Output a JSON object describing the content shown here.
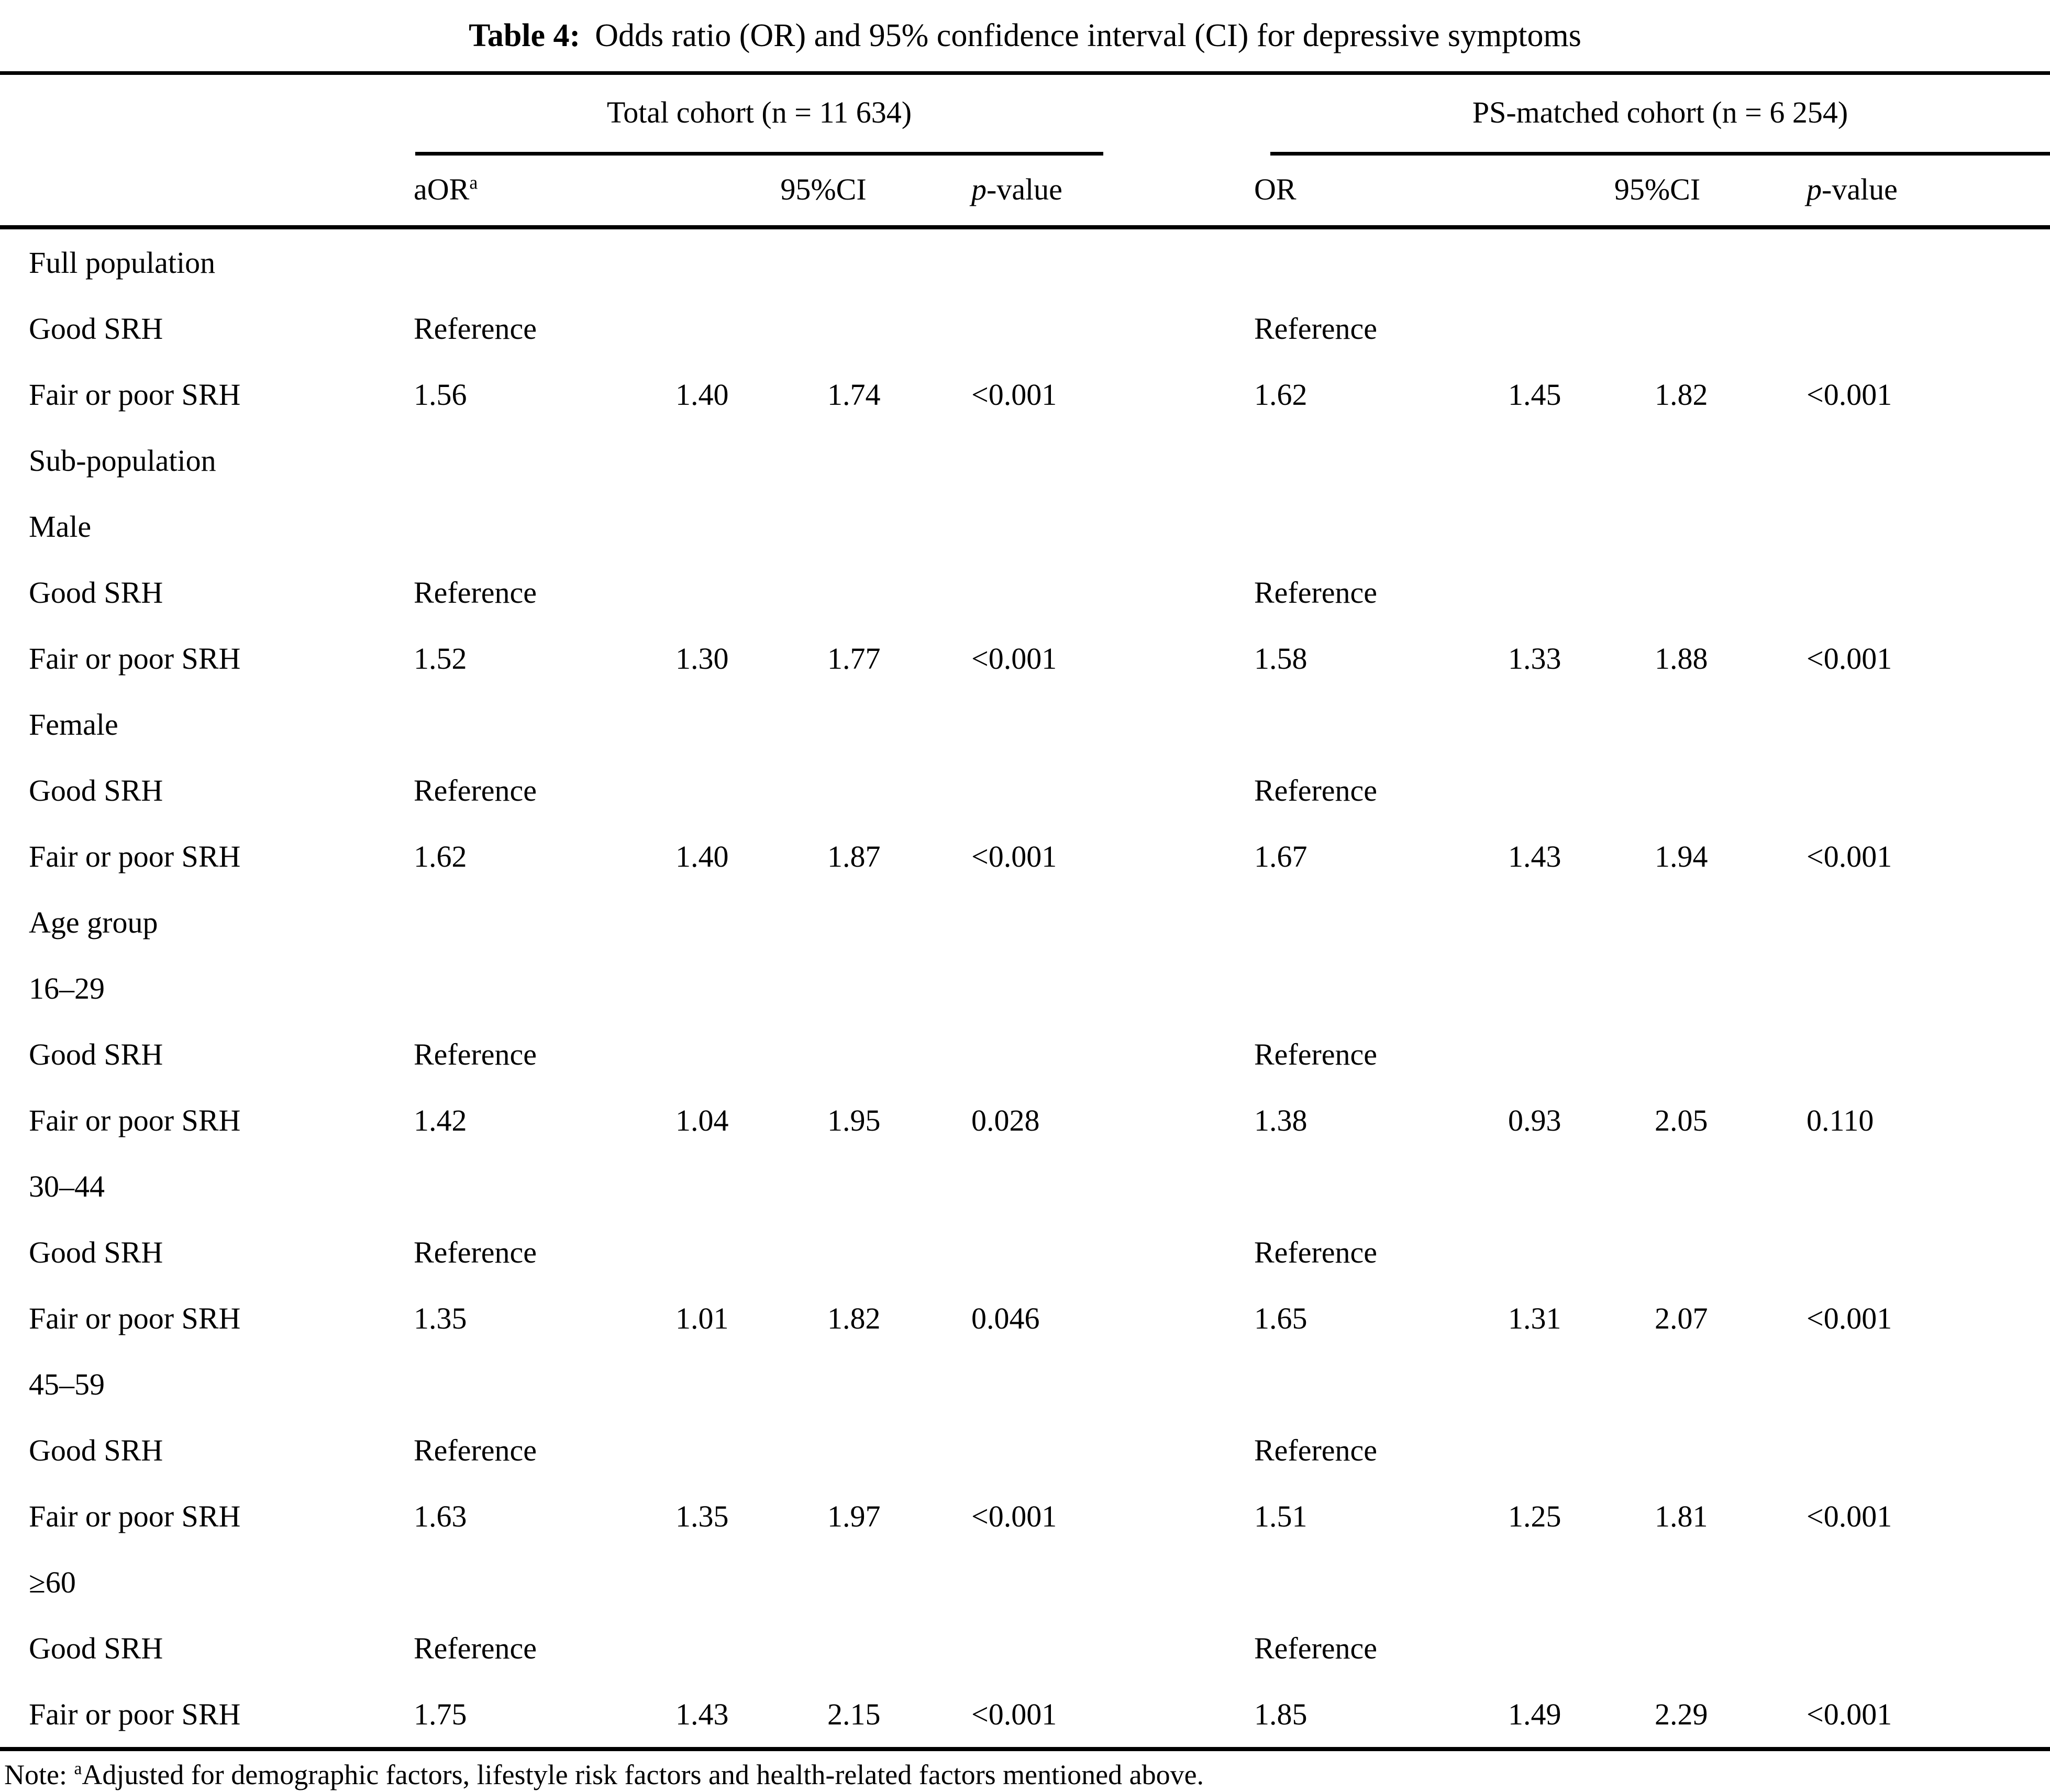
{
  "title": {
    "label": "Table 4:",
    "text": "Odds ratio (OR) and 95% confidence interval (CI) for depressive symptoms"
  },
  "header": {
    "group1": "Total cohort (n = 11 634)",
    "group2": "PS-matched cohort (n = 6 254)",
    "col_aor_base": "aOR",
    "col_aor_sup": "a",
    "col_ci_1": "95%CI",
    "col_ci_2": "95%CI",
    "col_p_italic": "p",
    "col_p_rest": "-value",
    "col_or": "OR"
  },
  "rows": [
    {
      "label": "Full population",
      "aor": "",
      "ci1": "",
      "ci2": "",
      "p": "",
      "or": "",
      "ci1b": "",
      "ci2b": "",
      "pb": ""
    },
    {
      "label": "Good SRH",
      "aor": "Reference",
      "ci1": "",
      "ci2": "",
      "p": "",
      "or": "Reference",
      "ci1b": "",
      "ci2b": "",
      "pb": ""
    },
    {
      "label": "Fair or poor SRH",
      "aor": "1.56",
      "ci1": "1.40",
      "ci2": "1.74",
      "p": "<0.001",
      "or": "1.62",
      "ci1b": "1.45",
      "ci2b": "1.82",
      "pb": "<0.001"
    },
    {
      "label": "Sub-population",
      "aor": "",
      "ci1": "",
      "ci2": "",
      "p": "",
      "or": "",
      "ci1b": "",
      "ci2b": "",
      "pb": ""
    },
    {
      "label": "Male",
      "aor": "",
      "ci1": "",
      "ci2": "",
      "p": "",
      "or": "",
      "ci1b": "",
      "ci2b": "",
      "pb": ""
    },
    {
      "label": "Good SRH",
      "aor": "Reference",
      "ci1": "",
      "ci2": "",
      "p": "",
      "or": "Reference",
      "ci1b": "",
      "ci2b": "",
      "pb": ""
    },
    {
      "label": "Fair or poor SRH",
      "aor": "1.52",
      "ci1": "1.30",
      "ci2": "1.77",
      "p": "<0.001",
      "or": "1.58",
      "ci1b": "1.33",
      "ci2b": "1.88",
      "pb": "<0.001"
    },
    {
      "label": "Female",
      "aor": "",
      "ci1": "",
      "ci2": "",
      "p": "",
      "or": "",
      "ci1b": "",
      "ci2b": "",
      "pb": ""
    },
    {
      "label": "Good SRH",
      "aor": "Reference",
      "ci1": "",
      "ci2": "",
      "p": "",
      "or": "Reference",
      "ci1b": "",
      "ci2b": "",
      "pb": ""
    },
    {
      "label": "Fair or poor SRH",
      "aor": "1.62",
      "ci1": "1.40",
      "ci2": "1.87",
      "p": "<0.001",
      "or": "1.67",
      "ci1b": "1.43",
      "ci2b": "1.94",
      "pb": "<0.001"
    },
    {
      "label": "Age group",
      "aor": "",
      "ci1": "",
      "ci2": "",
      "p": "",
      "or": "",
      "ci1b": "",
      "ci2b": "",
      "pb": ""
    },
    {
      "label": "16–29",
      "aor": "",
      "ci1": "",
      "ci2": "",
      "p": "",
      "or": "",
      "ci1b": "",
      "ci2b": "",
      "pb": ""
    },
    {
      "label": "Good SRH",
      "aor": "Reference",
      "ci1": "",
      "ci2": "",
      "p": "",
      "or": "Reference",
      "ci1b": "",
      "ci2b": "",
      "pb": ""
    },
    {
      "label": "Fair or poor SRH",
      "aor": "1.42",
      "ci1": "1.04",
      "ci2": "1.95",
      "p": "0.028",
      "or": "1.38",
      "ci1b": "0.93",
      "ci2b": "2.05",
      "pb": "0.110"
    },
    {
      "label": "30–44",
      "aor": "",
      "ci1": "",
      "ci2": "",
      "p": "",
      "or": "",
      "ci1b": "",
      "ci2b": "",
      "pb": ""
    },
    {
      "label": "Good SRH",
      "aor": "Reference",
      "ci1": "",
      "ci2": "",
      "p": "",
      "or": "Reference",
      "ci1b": "",
      "ci2b": "",
      "pb": ""
    },
    {
      "label": "Fair or poor SRH",
      "aor": "1.35",
      "ci1": "1.01",
      "ci2": "1.82",
      "p": "0.046",
      "or": "1.65",
      "ci1b": "1.31",
      "ci2b": "2.07",
      "pb": "<0.001"
    },
    {
      "label": "45–59",
      "aor": "",
      "ci1": "",
      "ci2": "",
      "p": "",
      "or": "",
      "ci1b": "",
      "ci2b": "",
      "pb": ""
    },
    {
      "label": "Good SRH",
      "aor": "Reference",
      "ci1": "",
      "ci2": "",
      "p": "",
      "or": "Reference",
      "ci1b": "",
      "ci2b": "",
      "pb": ""
    },
    {
      "label": "Fair or poor SRH",
      "aor": "1.63",
      "ci1": "1.35",
      "ci2": "1.97",
      "p": "<0.001",
      "or": "1.51",
      "ci1b": "1.25",
      "ci2b": "1.81",
      "pb": "<0.001"
    },
    {
      "label": "≥60",
      "aor": "",
      "ci1": "",
      "ci2": "",
      "p": "",
      "or": "",
      "ci1b": "",
      "ci2b": "",
      "pb": ""
    },
    {
      "label": "Good SRH",
      "aor": "Reference",
      "ci1": "",
      "ci2": "",
      "p": "",
      "or": "Reference",
      "ci1b": "",
      "ci2b": "",
      "pb": ""
    },
    {
      "label": "Fair or poor SRH",
      "aor": "1.75",
      "ci1": "1.43",
      "ci2": "2.15",
      "p": "<0.001",
      "or": "1.85",
      "ci1b": "1.49",
      "ci2b": "2.29",
      "pb": "<0.001"
    }
  ],
  "note": {
    "prefix": "Note: ",
    "sup": "a",
    "text": "Adjusted for demographic factors, lifestyle risk factors and health-related factors mentioned above."
  }
}
